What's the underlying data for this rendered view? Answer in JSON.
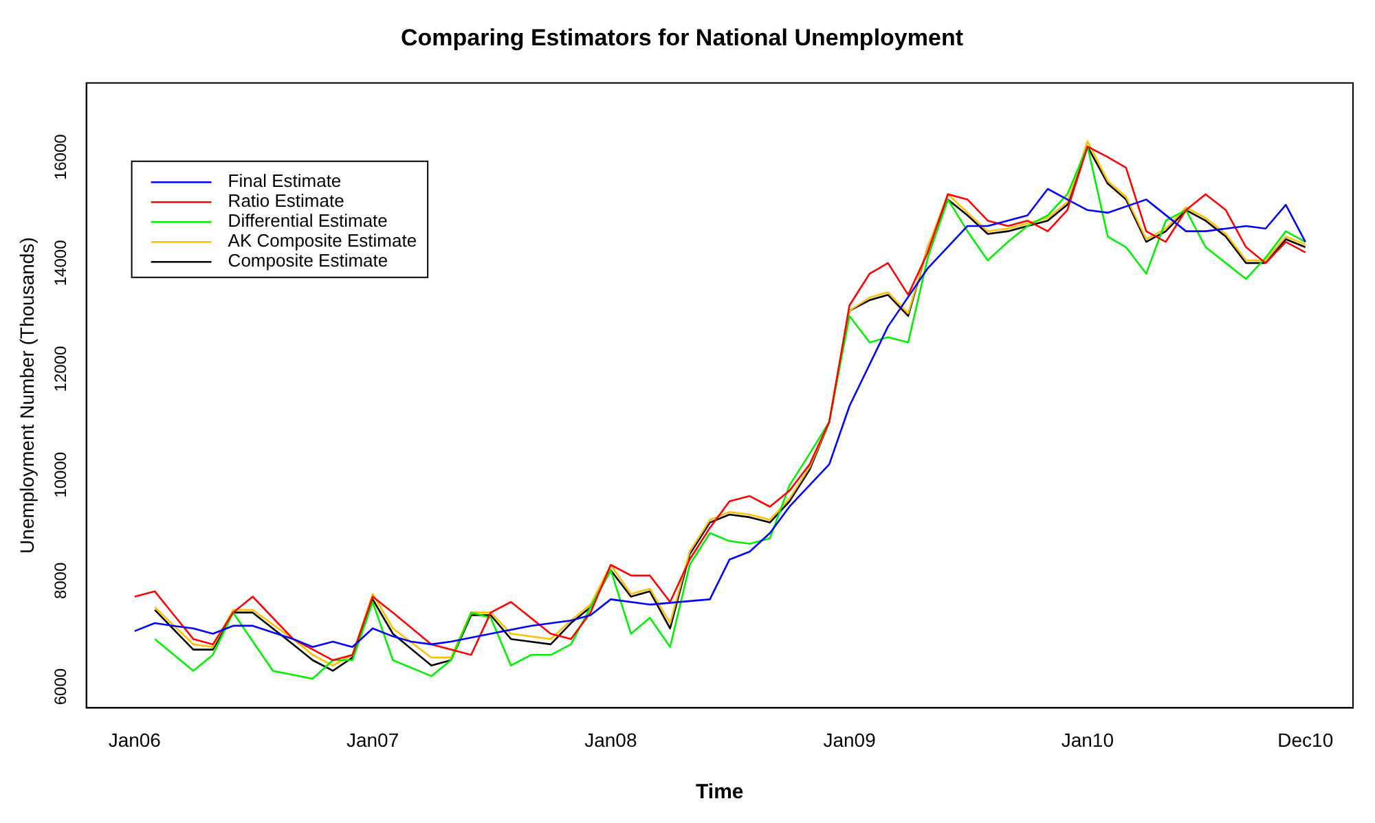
{
  "chart_data": {
    "type": "line",
    "title": "Comparing Estimators for National Unemployment",
    "xlabel": "Time",
    "ylabel": "Unemployment Number (Thousands)",
    "xlim": [
      "2005-10-19",
      "2011-02-12"
    ],
    "xticks": [
      {
        "value": "2006-01",
        "label": "Jan06"
      },
      {
        "value": "2007-01",
        "label": "Jan07"
      },
      {
        "value": "2008-01",
        "label": "Jan08"
      },
      {
        "value": "2009-01",
        "label": "Jan09"
      },
      {
        "value": "2010-01",
        "label": "Jan10"
      },
      {
        "value": "2010-12",
        "label": "Dec10"
      }
    ],
    "ylim": [
      5600,
      17400
    ],
    "yticks": [
      6000,
      8000,
      10000,
      12000,
      14000,
      16000
    ],
    "grid": false,
    "legend": "top left",
    "marker": "none",
    "line_style": "solid",
    "series": [
      {
        "name": "Final Estimate",
        "color": "#0000ff",
        "x": [
          "2006-01",
          "2006-02",
          "2006-03",
          "2006-04",
          "2006-05",
          "2006-06",
          "2006-07",
          "2006-09",
          "2006-10",
          "2006-11",
          "2006-12",
          "2007-01",
          "2007-02",
          "2007-03",
          "2007-04",
          "2007-05",
          "2007-07",
          "2007-09",
          "2007-11",
          "2007-12",
          "2008-01",
          "2008-03",
          "2008-06",
          "2008-07",
          "2008-08",
          "2008-09",
          "2008-10",
          "2008-12",
          "2009-01",
          "2009-03",
          "2009-05",
          "2009-07",
          "2009-08",
          "2009-10",
          "2009-11",
          "2009-12",
          "2010-01",
          "2010-02",
          "2010-04",
          "2010-06",
          "2010-07",
          "2010-09",
          "2010-10",
          "2010-11",
          "2010-12"
        ],
        "values": [
          7050,
          7200,
          7150,
          7100,
          7000,
          7150,
          7150,
          6900,
          6750,
          6850,
          6750,
          7100,
          6950,
          6850,
          6800,
          6850,
          7000,
          7150,
          7250,
          7350,
          7650,
          7550,
          7650,
          8400,
          8550,
          8900,
          9400,
          10200,
          11300,
          12800,
          13900,
          14700,
          14700,
          14900,
          15400,
          15200,
          15000,
          14950,
          15200,
          14600,
          14600,
          14700,
          14650,
          15100,
          14400
        ]
      },
      {
        "name": "Ratio Estimate",
        "color": "#ff0000",
        "x": [
          "2006-01",
          "2006-02",
          "2006-04",
          "2006-05",
          "2006-06",
          "2006-07",
          "2006-09",
          "2006-11",
          "2006-12",
          "2007-01",
          "2007-02",
          "2007-04",
          "2007-05",
          "2007-06",
          "2007-07",
          "2007-08",
          "2007-10",
          "2007-11",
          "2007-12",
          "2008-01",
          "2008-02",
          "2008-03",
          "2008-04",
          "2008-05",
          "2008-06",
          "2008-07",
          "2008-08",
          "2008-09",
          "2008-10",
          "2008-11",
          "2008-12",
          "2009-01",
          "2009-02",
          "2009-03",
          "2009-04",
          "2009-05",
          "2009-06",
          "2009-07",
          "2009-08",
          "2009-09",
          "2009-10",
          "2009-11",
          "2009-12",
          "2010-01",
          "2010-02",
          "2010-03",
          "2010-04",
          "2010-05",
          "2010-06",
          "2010-07",
          "2010-08",
          "2010-09",
          "2010-10",
          "2010-11",
          "2010-12"
        ],
        "values": [
          7700,
          7800,
          6900,
          6800,
          7400,
          7700,
          6900,
          6500,
          6600,
          7700,
          7400,
          6800,
          6700,
          6600,
          7400,
          7600,
          7000,
          6900,
          7400,
          8300,
          8100,
          8100,
          7600,
          8400,
          9000,
          9500,
          9600,
          9400,
          9700,
          10200,
          11000,
          13200,
          13800,
          14000,
          13400,
          14200,
          15300,
          15200,
          14800,
          14700,
          14800,
          14600,
          15000,
          16200,
          16000,
          15800,
          14600,
          14400,
          15000,
          15300,
          15000,
          14300,
          14000,
          14400,
          14200
        ]
      },
      {
        "name": "Differential Estimate",
        "color": "#00ee00",
        "x": [
          "2006-02",
          "2006-04",
          "2006-05",
          "2006-06",
          "2006-08",
          "2006-10",
          "2006-11",
          "2006-12",
          "2007-01",
          "2007-02",
          "2007-04",
          "2007-05",
          "2007-06",
          "2007-07",
          "2007-08",
          "2007-09",
          "2007-10",
          "2007-11",
          "2007-12",
          "2008-01",
          "2008-02",
          "2008-03",
          "2008-04",
          "2008-05",
          "2008-06",
          "2008-07",
          "2008-08",
          "2008-09",
          "2008-10",
          "2008-11",
          "2008-12",
          "2009-01",
          "2009-02",
          "2009-03",
          "2009-04",
          "2009-05",
          "2009-06",
          "2009-07",
          "2009-08",
          "2009-09",
          "2009-10",
          "2009-11",
          "2009-12",
          "2010-01",
          "2010-02",
          "2010-03",
          "2010-04",
          "2010-05",
          "2010-06",
          "2010-07",
          "2010-08",
          "2010-09",
          "2010-10",
          "2010-11",
          "2010-12"
        ],
        "values": [
          6900,
          6300,
          6600,
          7400,
          6300,
          6150,
          6500,
          6500,
          7600,
          6500,
          6200,
          6500,
          7400,
          7300,
          6400,
          6600,
          6600,
          6800,
          7500,
          8200,
          7000,
          7300,
          6750,
          8300,
          8900,
          8750,
          8700,
          8800,
          9800,
          10400,
          11000,
          13000,
          12500,
          12600,
          12500,
          14100,
          15200,
          14600,
          14050,
          14400,
          14700,
          14900,
          15300,
          16200,
          14500,
          14300,
          13800,
          14800,
          15000,
          14300,
          14000,
          13700,
          14100,
          14600,
          14400
        ]
      },
      {
        "name": "AK Composite Estimate",
        "color": "#ffc000",
        "x": [
          "2006-02",
          "2006-04",
          "2006-05",
          "2006-06",
          "2006-07",
          "2006-09",
          "2006-10",
          "2006-11",
          "2006-12",
          "2007-01",
          "2007-02",
          "2007-04",
          "2007-05",
          "2007-06",
          "2007-07",
          "2007-08",
          "2007-10",
          "2007-11",
          "2007-12",
          "2008-01",
          "2008-02",
          "2008-03",
          "2008-04",
          "2008-05",
          "2008-06",
          "2008-07",
          "2008-08",
          "2008-09",
          "2008-10",
          "2008-11",
          "2008-12",
          "2009-01",
          "2009-02",
          "2009-03",
          "2009-04",
          "2009-05",
          "2009-06",
          "2009-07",
          "2009-08",
          "2009-09",
          "2009-10",
          "2009-11",
          "2009-12",
          "2010-01",
          "2010-02",
          "2010-03",
          "2010-04",
          "2010-05",
          "2010-06",
          "2010-07",
          "2010-08",
          "2010-09",
          "2010-10",
          "2010-11",
          "2010-12"
        ],
        "values": [
          7500,
          6800,
          6750,
          7450,
          7450,
          6900,
          6600,
          6400,
          6600,
          7750,
          7100,
          6550,
          6550,
          7400,
          7400,
          7000,
          6900,
          7250,
          7550,
          8300,
          7750,
          7850,
          7200,
          8550,
          9150,
          9300,
          9250,
          9150,
          9550,
          10150,
          11000,
          13100,
          13350,
          13450,
          13050,
          14300,
          15300,
          14950,
          14600,
          14650,
          14750,
          14850,
          15150,
          16300,
          15550,
          15250,
          14450,
          14650,
          15050,
          14850,
          14550,
          14050,
          14050,
          14500,
          14350
        ]
      },
      {
        "name": "Composite Estimate",
        "color": "#000000",
        "x": [
          "2006-02",
          "2006-04",
          "2006-05",
          "2006-06",
          "2006-07",
          "2006-09",
          "2006-10",
          "2006-11",
          "2006-12",
          "2007-01",
          "2007-02",
          "2007-04",
          "2007-05",
          "2007-06",
          "2007-07",
          "2007-08",
          "2007-10",
          "2007-11",
          "2007-12",
          "2008-01",
          "2008-02",
          "2008-03",
          "2008-04",
          "2008-05",
          "2008-06",
          "2008-07",
          "2008-08",
          "2008-09",
          "2008-10",
          "2008-11",
          "2008-12",
          "2009-01",
          "2009-02",
          "2009-03",
          "2009-04",
          "2009-05",
          "2009-06",
          "2009-07",
          "2009-08",
          "2009-09",
          "2009-10",
          "2009-11",
          "2009-12",
          "2010-01",
          "2010-02",
          "2010-03",
          "2010-04",
          "2010-05",
          "2010-06",
          "2010-07",
          "2010-08",
          "2010-09",
          "2010-10",
          "2010-11",
          "2010-12"
        ],
        "values": [
          7450,
          6700,
          6700,
          7400,
          7400,
          6800,
          6500,
          6300,
          6550,
          7650,
          7000,
          6400,
          6500,
          7350,
          7350,
          6900,
          6800,
          7200,
          7500,
          8200,
          7700,
          7800,
          7100,
          8500,
          9100,
          9250,
          9200,
          9100,
          9500,
          10100,
          11000,
          13100,
          13300,
          13400,
          13000,
          14300,
          15200,
          14900,
          14550,
          14600,
          14700,
          14800,
          15100,
          16200,
          15500,
          15200,
          14400,
          14600,
          15000,
          14800,
          14500,
          14000,
          14000,
          14450,
          14300
        ]
      }
    ]
  }
}
